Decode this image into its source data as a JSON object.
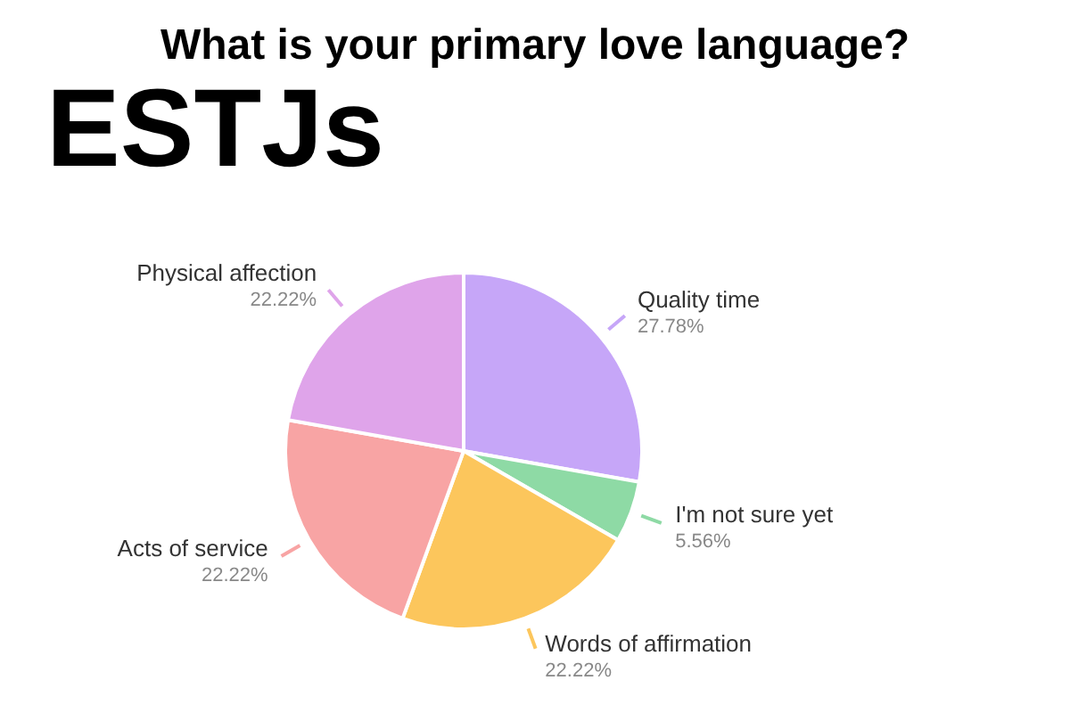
{
  "chart_data": {
    "type": "pie",
    "title": "What is your primary love language?",
    "subtitle": "ESTJs",
    "categories": [
      "Quality time",
      "I'm not sure yet",
      "Words of affirmation",
      "Acts of service",
      "Physical affection"
    ],
    "values": [
      27.78,
      5.56,
      22.22,
      22.22,
      22.22
    ],
    "value_labels": [
      "27.78%",
      "5.56%",
      "22.22%",
      "22.22%",
      "22.22%"
    ],
    "colors": [
      "#c6a6f8",
      "#8edaa5",
      "#fcc65c",
      "#f8a4a4",
      "#dfa4ea"
    ],
    "legend": false
  }
}
